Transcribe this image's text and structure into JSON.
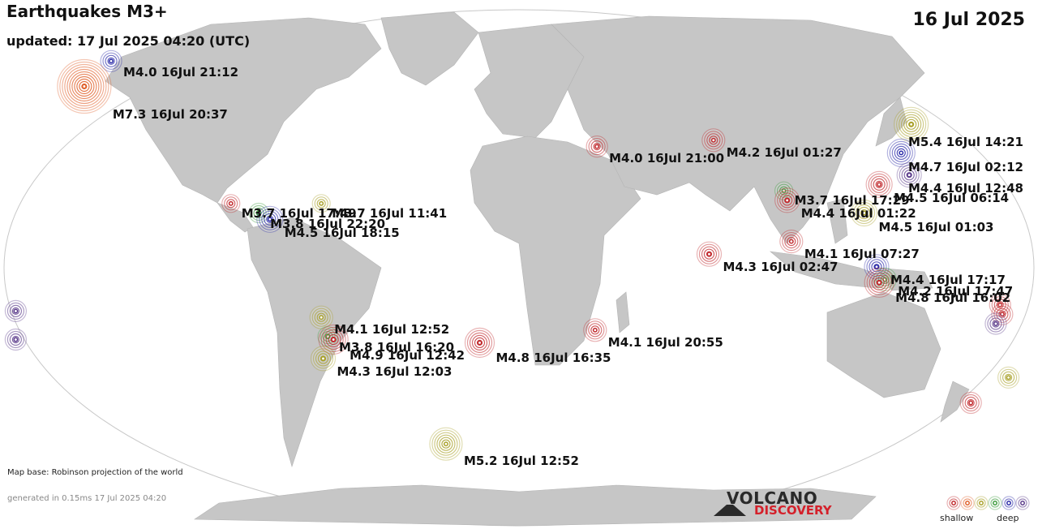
{
  "header": {
    "title": "Earthquakes M3+",
    "updated": "updated: 17 Jul 2025 04:20 (UTC)",
    "date": "16 Jul 2025"
  },
  "footer": {
    "map_base": "Map base: Robinson projection of the world",
    "generated": "generated in 0.15ms 17 Jul 2025 04:20"
  },
  "logo": {
    "line1": "VOLCANO",
    "line2": "DISCOVERY"
  },
  "legend": {
    "shallow_label": "shallow",
    "deep_label": "deep",
    "depth_colors": [
      "#c0282c",
      "#e0602a",
      "#a8a028",
      "#3a9a3a",
      "#2a2aa8",
      "#5a3a8a"
    ]
  },
  "colors": {
    "land": "#c6c6c6",
    "ocean": "#ffffff",
    "outline": "#bdbdbd"
  },
  "quakes": [
    {
      "label": "M4.0 16Jul 21:12",
      "lon": -152,
      "lat": 63,
      "depth_class": 4
    },
    {
      "label": "M7.3 16Jul 20:37",
      "lon": -160,
      "lat": 55,
      "depth_class": 1
    },
    {
      "label": "M4.0 16Jul 21:00",
      "lon": 28,
      "lat": 36,
      "depth_class": 0
    },
    {
      "label": "M4.2 16Jul 01:27",
      "lon": 70,
      "lat": 38,
      "depth_class": 0
    },
    {
      "label": "M5.4 16Jul 14:21",
      "lon": 142,
      "lat": 43,
      "depth_class": 2
    },
    {
      "label": "M4.7 16Jul 02:12",
      "lon": 137,
      "lat": 34,
      "depth_class": 4
    },
    {
      "label": "M4.4 16Jul 12:48",
      "lon": 139,
      "lat": 27,
      "depth_class": 5
    },
    {
      "label": "M4.5 16Jul 06:14",
      "lon": 128,
      "lat": 24,
      "depth_class": 0
    },
    {
      "label": "M3.7 16Jul 17:29",
      "lon": 94,
      "lat": 22,
      "depth_class": 3
    },
    {
      "label": "M4.4 16Jul 01:22",
      "lon": 95,
      "lat": 19,
      "depth_class": 0
    },
    {
      "label": "M4.5 16Jul 01:03",
      "lon": 122,
      "lat": 15,
      "depth_class": 2
    },
    {
      "label": "M3.7 16Jul 17:49",
      "lon": -102,
      "lat": 18,
      "depth_class": 0
    },
    {
      "label": "M3.7 16Jul 11:41",
      "lon": -70,
      "lat": 18,
      "depth_class": 2
    },
    {
      "label": "M3.8 16Jul 22:20",
      "lon": -92,
      "lat": 15,
      "depth_class": 3
    },
    {
      "label": "M4.5 16Jul 18:15",
      "lon": -88,
      "lat": 13,
      "depth_class": 4
    },
    {
      "label": "M4.1 16Jul 07:27",
      "lon": 96,
      "lat": 6,
      "depth_class": 0
    },
    {
      "label": "M4.3 16Jul 02:47",
      "lon": 67,
      "lat": 2,
      "depth_class": 0
    },
    {
      "label": "M4.4 16Jul 17:17",
      "lon": 126,
      "lat": -2,
      "depth_class": 4
    },
    {
      "label": "M4.2 16Jul 17:47",
      "lon": 129,
      "lat": -6,
      "depth_class": 3
    },
    {
      "label": "M4.8 16Jul 16:02",
      "lon": 127,
      "lat": -7,
      "depth_class": 0
    },
    {
      "label": "M4.1 16Jul 12:52",
      "lon": -70,
      "lat": -18,
      "depth_class": 2
    },
    {
      "label": "M3.8 16Jul 16:20",
      "lon": -68,
      "lat": -24,
      "depth_class": 3
    },
    {
      "label": "M4.9 16Jul 12:42",
      "lon": -66,
      "lat": -25,
      "depth_class": 0
    },
    {
      "label": "M4.8 16Jul 16:35",
      "lon": -14,
      "lat": -26,
      "depth_class": 0
    },
    {
      "label": "M4.1 16Jul 20:55",
      "lon": 27,
      "lat": -22,
      "depth_class": 0
    },
    {
      "label": "M4.3 16Jul 12:03",
      "lon": -70,
      "lat": -31,
      "depth_class": 2
    },
    {
      "label": "M5.2 16Jul 12:52",
      "lon": -27,
      "lat": -58,
      "depth_class": 2
    },
    {
      "label": "",
      "lon": 170,
      "lat": -14,
      "depth_class": 0
    },
    {
      "label": "",
      "lon": 171,
      "lat": -17,
      "depth_class": 0
    },
    {
      "label": "",
      "lon": 169,
      "lat": -20,
      "depth_class": 5
    },
    {
      "label": "",
      "lon": -178,
      "lat": -16,
      "depth_class": 5
    },
    {
      "label": "",
      "lon": -179,
      "lat": -25,
      "depth_class": 5
    },
    {
      "label": "",
      "lon": 176,
      "lat": -37,
      "depth_class": 2
    },
    {
      "label": "",
      "lon": 164,
      "lat": -45,
      "depth_class": 0
    }
  ]
}
